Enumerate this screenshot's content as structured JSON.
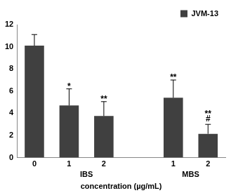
{
  "chart_data": {
    "type": "bar",
    "x_label": "concentration (µg/mL)",
    "categories": [
      "0",
      "1",
      "2",
      null,
      "1",
      "2"
    ],
    "group_of": [
      null,
      "IBS",
      "IBS",
      null,
      "MBS",
      "MBS"
    ],
    "series": [
      {
        "name": "JVM-13",
        "color": "#404040",
        "values": [
          10.1,
          4.7,
          3.75,
          null,
          5.4,
          2.15
        ],
        "errors": [
          1.0,
          1.5,
          1.3,
          null,
          1.6,
          0.85
        ]
      }
    ],
    "annotations": [
      null,
      [
        "*"
      ],
      [
        "**"
      ],
      null,
      [
        "**"
      ],
      [
        "**",
        "#"
      ]
    ],
    "ylim": [
      0,
      12
    ],
    "yticks": [
      0,
      2,
      4,
      6,
      8,
      10,
      12
    ],
    "grid": false,
    "legend": "top-right"
  }
}
